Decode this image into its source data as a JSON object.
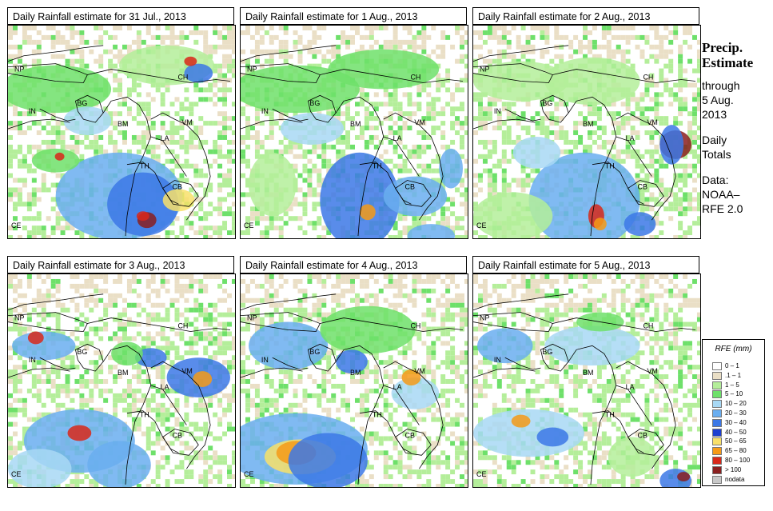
{
  "panels": [
    {
      "title": "Daily Rainfall estimate for  31 Jul., 2013"
    },
    {
      "title": "Daily Rainfall estimate for  1 Aug., 2013"
    },
    {
      "title": "Daily Rainfall estimate for  2 Aug., 2013"
    },
    {
      "title": "Daily Rainfall estimate for  3 Aug., 2013"
    },
    {
      "title": "Daily Rainfall estimate for  4 Aug., 2013"
    },
    {
      "title": "Daily Rainfall estimate for  5 Aug., 2013"
    }
  ],
  "country_labels": [
    "NP",
    "CH",
    "IN",
    "BG",
    "BM",
    "VM",
    "LA",
    "TH",
    "CB",
    "CE"
  ],
  "sidebar": {
    "heading1": "Precip.",
    "heading2": "Estimate",
    "line1": "through",
    "line2": "5 Aug.",
    "line3": "2013",
    "line4": "Daily",
    "line5": "Totals",
    "line6": "Data:",
    "line7": "NOAA–",
    "line8": "RFE 2.0"
  },
  "legend": {
    "title": "RFE (mm)",
    "items": [
      {
        "label": "0 – 1",
        "color": "#ffffff"
      },
      {
        "label": ".1 – 1",
        "color": "#eadfc6"
      },
      {
        "label": "1 – 5",
        "color": "#b4ee9a"
      },
      {
        "label": "5 – 10",
        "color": "#6ee06a"
      },
      {
        "label": "10 – 20",
        "color": "#a8d8f4"
      },
      {
        "label": "20 – 30",
        "color": "#6aaef0"
      },
      {
        "label": "30 – 40",
        "color": "#3c78e6"
      },
      {
        "label": "40 – 50",
        "color": "#1c3fd0"
      },
      {
        "label": "50 – 65",
        "color": "#f8e06a"
      },
      {
        "label": "65 – 80",
        "color": "#f59a18"
      },
      {
        "label": "80 – 100",
        "color": "#d8281a"
      },
      {
        "label": "> 100",
        "color": "#8a1f1f"
      },
      {
        "label": "nodata",
        "color": "#c8c8c8"
      }
    ]
  }
}
